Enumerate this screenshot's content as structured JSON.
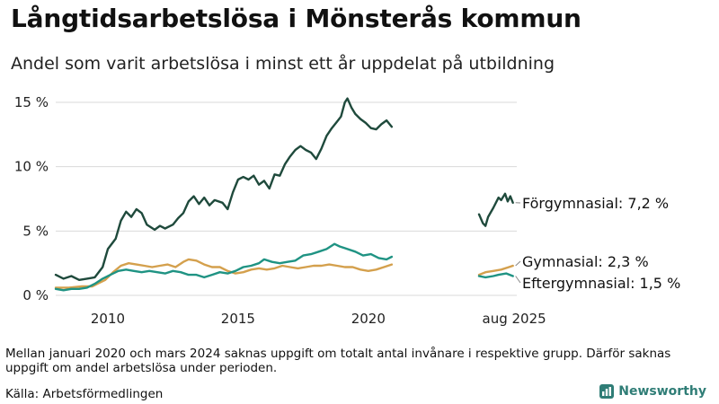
{
  "header": {
    "title": "Långtidsarbetslösa i Mönsterås kommun",
    "subtitle": "Andel som varit arbetslösa i minst ett år uppdelat på utbildning"
  },
  "footer": {
    "note": "Mellan januari 2020 och mars 2024 saknas uppgift om totalt antal invånare i respektive grupp. Därför saknas uppgift om andel arbetslösa under perioden.",
    "source": "Källa: Arbetsförmedlingen",
    "brand": "Newsworthy"
  },
  "chart_data": {
    "type": "line",
    "title": "Långtidsarbetslösa i Mönsterås kommun",
    "ylim": [
      0,
      15
    ],
    "y_ticks": [
      0,
      5,
      10,
      15
    ],
    "y_tick_labels": [
      "0 %",
      "5 %",
      "10 %",
      "15 %"
    ],
    "x_range": [
      2008.0,
      2025.7
    ],
    "x_ticks": [
      2010,
      2015,
      2020,
      2025.6
    ],
    "x_tick_labels": [
      "2010",
      "2015",
      "2020",
      "aug 2025"
    ],
    "colors": {
      "forgymnasial": "#1f4a3c",
      "gymnasial": "#d4a04d",
      "eftergymnasial": "#1f9383"
    },
    "series": [
      {
        "key": "forgymnasial",
        "name": "Förgymnasial",
        "end_label": "Förgymnasial: 7,2 %",
        "segments": [
          [
            [
              2008.0,
              1.6
            ],
            [
              2008.3,
              1.3
            ],
            [
              2008.6,
              1.5
            ],
            [
              2008.9,
              1.2
            ],
            [
              2009.2,
              1.3
            ],
            [
              2009.5,
              1.4
            ],
            [
              2009.8,
              2.2
            ],
            [
              2010.0,
              3.6
            ],
            [
              2010.3,
              4.4
            ],
            [
              2010.5,
              5.8
            ],
            [
              2010.7,
              6.5
            ],
            [
              2010.9,
              6.1
            ],
            [
              2011.1,
              6.7
            ],
            [
              2011.3,
              6.4
            ],
            [
              2011.5,
              5.5
            ],
            [
              2011.8,
              5.1
            ],
            [
              2012.0,
              5.4
            ],
            [
              2012.2,
              5.2
            ],
            [
              2012.5,
              5.5
            ],
            [
              2012.7,
              6.0
            ],
            [
              2012.9,
              6.4
            ],
            [
              2013.1,
              7.3
            ],
            [
              2013.3,
              7.7
            ],
            [
              2013.5,
              7.1
            ],
            [
              2013.7,
              7.6
            ],
            [
              2013.9,
              7.0
            ],
            [
              2014.1,
              7.4
            ],
            [
              2014.4,
              7.2
            ],
            [
              2014.6,
              6.7
            ],
            [
              2014.8,
              8.0
            ],
            [
              2015.0,
              9.0
            ],
            [
              2015.2,
              9.2
            ],
            [
              2015.4,
              9.0
            ],
            [
              2015.6,
              9.3
            ],
            [
              2015.8,
              8.6
            ],
            [
              2016.0,
              8.9
            ],
            [
              2016.2,
              8.3
            ],
            [
              2016.4,
              9.4
            ],
            [
              2016.6,
              9.3
            ],
            [
              2016.8,
              10.2
            ],
            [
              2017.0,
              10.8
            ],
            [
              2017.2,
              11.3
            ],
            [
              2017.4,
              11.6
            ],
            [
              2017.6,
              11.3
            ],
            [
              2017.8,
              11.1
            ],
            [
              2018.0,
              10.6
            ],
            [
              2018.2,
              11.4
            ],
            [
              2018.4,
              12.4
            ],
            [
              2018.6,
              13.0
            ],
            [
              2018.8,
              13.5
            ],
            [
              2018.95,
              13.9
            ],
            [
              2019.1,
              15.0
            ],
            [
              2019.2,
              15.3
            ],
            [
              2019.35,
              14.6
            ],
            [
              2019.5,
              14.1
            ],
            [
              2019.7,
              13.7
            ],
            [
              2019.9,
              13.4
            ],
            [
              2020.1,
              13.0
            ],
            [
              2020.3,
              12.9
            ],
            [
              2020.5,
              13.3
            ],
            [
              2020.7,
              13.6
            ],
            [
              2020.9,
              13.1
            ]
          ],
          [
            [
              2024.25,
              6.3
            ],
            [
              2024.4,
              5.6
            ],
            [
              2024.5,
              5.4
            ],
            [
              2024.6,
              6.1
            ],
            [
              2024.8,
              6.8
            ],
            [
              2025.0,
              7.6
            ],
            [
              2025.1,
              7.4
            ],
            [
              2025.25,
              7.9
            ],
            [
              2025.35,
              7.3
            ],
            [
              2025.45,
              7.7
            ],
            [
              2025.55,
              7.2
            ]
          ]
        ]
      },
      {
        "key": "gymnasial",
        "name": "Gymnasial",
        "end_label": "Gymnasial: 2,3 %",
        "segments": [
          [
            [
              2008.0,
              0.6
            ],
            [
              2008.5,
              0.6
            ],
            [
              2009.0,
              0.7
            ],
            [
              2009.4,
              0.7
            ],
            [
              2009.6,
              0.9
            ],
            [
              2009.9,
              1.2
            ],
            [
              2010.2,
              1.8
            ],
            [
              2010.5,
              2.3
            ],
            [
              2010.8,
              2.5
            ],
            [
              2011.1,
              2.4
            ],
            [
              2011.4,
              2.3
            ],
            [
              2011.7,
              2.2
            ],
            [
              2012.0,
              2.3
            ],
            [
              2012.3,
              2.4
            ],
            [
              2012.6,
              2.2
            ],
            [
              2012.9,
              2.6
            ],
            [
              2013.1,
              2.8
            ],
            [
              2013.4,
              2.7
            ],
            [
              2013.7,
              2.4
            ],
            [
              2014.0,
              2.2
            ],
            [
              2014.3,
              2.2
            ],
            [
              2014.6,
              1.9
            ],
            [
              2014.9,
              1.7
            ],
            [
              2015.2,
              1.8
            ],
            [
              2015.5,
              2.0
            ],
            [
              2015.8,
              2.1
            ],
            [
              2016.1,
              2.0
            ],
            [
              2016.4,
              2.1
            ],
            [
              2016.7,
              2.3
            ],
            [
              2017.0,
              2.2
            ],
            [
              2017.3,
              2.1
            ],
            [
              2017.6,
              2.2
            ],
            [
              2017.9,
              2.3
            ],
            [
              2018.2,
              2.3
            ],
            [
              2018.5,
              2.4
            ],
            [
              2018.8,
              2.3
            ],
            [
              2019.1,
              2.2
            ],
            [
              2019.4,
              2.2
            ],
            [
              2019.7,
              2.0
            ],
            [
              2020.0,
              1.9
            ],
            [
              2020.3,
              2.0
            ],
            [
              2020.6,
              2.2
            ],
            [
              2020.9,
              2.4
            ]
          ],
          [
            [
              2024.25,
              1.6
            ],
            [
              2024.5,
              1.8
            ],
            [
              2024.8,
              1.9
            ],
            [
              2025.1,
              2.0
            ],
            [
              2025.4,
              2.2
            ],
            [
              2025.55,
              2.3
            ]
          ]
        ]
      },
      {
        "key": "eftergymnasial",
        "name": "Eftergymnasial",
        "end_label": "Eftergymnasial: 1,5 %",
        "segments": [
          [
            [
              2008.0,
              0.5
            ],
            [
              2008.3,
              0.4
            ],
            [
              2008.6,
              0.5
            ],
            [
              2008.9,
              0.5
            ],
            [
              2009.2,
              0.6
            ],
            [
              2009.5,
              0.9
            ],
            [
              2009.8,
              1.3
            ],
            [
              2010.1,
              1.6
            ],
            [
              2010.4,
              1.9
            ],
            [
              2010.7,
              2.0
            ],
            [
              2011.0,
              1.9
            ],
            [
              2011.3,
              1.8
            ],
            [
              2011.6,
              1.9
            ],
            [
              2011.9,
              1.8
            ],
            [
              2012.2,
              1.7
            ],
            [
              2012.5,
              1.9
            ],
            [
              2012.8,
              1.8
            ],
            [
              2013.1,
              1.6
            ],
            [
              2013.4,
              1.6
            ],
            [
              2013.7,
              1.4
            ],
            [
              2014.0,
              1.6
            ],
            [
              2014.3,
              1.8
            ],
            [
              2014.6,
              1.7
            ],
            [
              2014.9,
              1.9
            ],
            [
              2015.2,
              2.2
            ],
            [
              2015.5,
              2.3
            ],
            [
              2015.8,
              2.5
            ],
            [
              2016.0,
              2.8
            ],
            [
              2016.3,
              2.6
            ],
            [
              2016.6,
              2.5
            ],
            [
              2016.9,
              2.6
            ],
            [
              2017.2,
              2.7
            ],
            [
              2017.5,
              3.1
            ],
            [
              2017.8,
              3.2
            ],
            [
              2018.1,
              3.4
            ],
            [
              2018.4,
              3.6
            ],
            [
              2018.7,
              4.0
            ],
            [
              2018.9,
              3.8
            ],
            [
              2019.2,
              3.6
            ],
            [
              2019.5,
              3.4
            ],
            [
              2019.8,
              3.1
            ],
            [
              2020.1,
              3.2
            ],
            [
              2020.4,
              2.9
            ],
            [
              2020.7,
              2.8
            ],
            [
              2020.9,
              3.0
            ]
          ],
          [
            [
              2024.25,
              1.5
            ],
            [
              2024.5,
              1.4
            ],
            [
              2024.8,
              1.5
            ],
            [
              2025.0,
              1.6
            ],
            [
              2025.3,
              1.7
            ],
            [
              2025.55,
              1.5
            ]
          ]
        ]
      }
    ]
  }
}
